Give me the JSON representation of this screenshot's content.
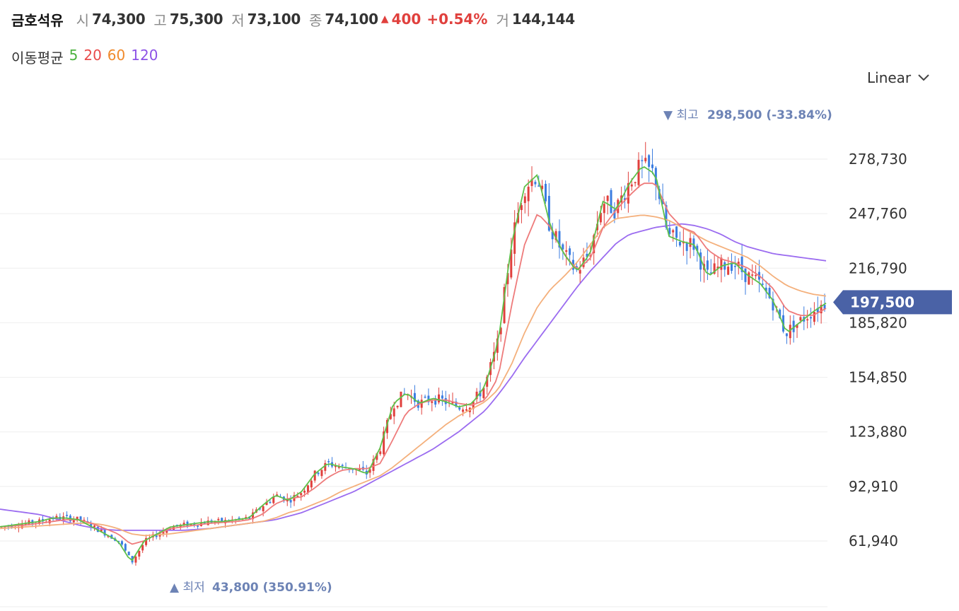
{
  "header": {
    "name": "금호석유",
    "open_label": "시",
    "open": "74,300",
    "high_label": "고",
    "high": "75,300",
    "low_label": "저",
    "low": "73,100",
    "close_label": "종",
    "close": "74,100",
    "change": "400",
    "change_pct": "+0.54%",
    "volume_label": "거",
    "volume": "144,144"
  },
  "ma_legend": {
    "title": "이동평균",
    "ma5": "5",
    "ma20": "20",
    "ma60": "60",
    "ma120": "120"
  },
  "scale_select": {
    "value": "Linear"
  },
  "colors": {
    "up": "#e0403d",
    "down": "#3b7de0",
    "ma5": "#5ec14a",
    "ma20": "#ee7b7b",
    "ma60": "#f4b07c",
    "ma120": "#9b6cf0",
    "current": "#4a62a6"
  },
  "chart_data": {
    "type": "candlestick",
    "y_ticks": [
      "278,730",
      "247,760",
      "216,790",
      "185,820",
      "154,850",
      "123,880",
      "92,910",
      "61,940"
    ],
    "y_tick_values": [
      278730,
      247760,
      216790,
      185820,
      154850,
      123880,
      92910,
      61940
    ],
    "grid": true,
    "current_price": "197,500",
    "current_value": 197500,
    "high_marker": {
      "label": "최고",
      "value_text": "298,500 (-33.84%)",
      "value": 298500
    },
    "low_marker": {
      "label": "최저",
      "value_text": "43,800 (350.91%)",
      "value": 43800
    },
    "series": [
      {
        "name": "5",
        "color": "#5ec14a",
        "values": [
          70000,
          71000,
          72000,
          73000,
          75000,
          75000,
          74000,
          70000,
          66000,
          62000,
          50000,
          62000,
          66000,
          70000,
          71000,
          72000,
          73000,
          73000,
          74000,
          75000,
          82000,
          88000,
          85000,
          90000,
          100000,
          106000,
          104000,
          103000,
          100000,
          115000,
          140000,
          146000,
          140000,
          143000,
          141000,
          138000,
          140000,
          150000,
          175000,
          230000,
          263000,
          270000,
          240000,
          225000,
          215000,
          225000,
          255000,
          250000,
          265000,
          275000,
          270000,
          235000,
          232000,
          230000,
          212000,
          218000,
          220000,
          213000,
          208000,
          198000,
          180000,
          186000,
          192000,
          197000
        ]
      },
      {
        "name": "20",
        "color": "#ee7b7b",
        "values": [
          70000,
          70500,
          71000,
          72000,
          73000,
          74000,
          74000,
          72000,
          69000,
          66000,
          60000,
          62000,
          66000,
          69000,
          70000,
          71000,
          72000,
          72500,
          73000,
          74000,
          77000,
          83000,
          86000,
          87000,
          92000,
          98000,
          102000,
          103000,
          103000,
          106000,
          120000,
          135000,
          140000,
          142000,
          142000,
          140000,
          139000,
          142000,
          155000,
          195000,
          230000,
          248000,
          240000,
          225000,
          216000,
          222000,
          240000,
          250000,
          258000,
          265000,
          265000,
          248000,
          240000,
          237000,
          227000,
          222000,
          220000,
          217000,
          212000,
          205000,
          193000,
          190000,
          190000,
          194000
        ]
      },
      {
        "name": "60",
        "color": "#f4b07c",
        "values": [
          69000,
          69500,
          70000,
          70500,
          71000,
          71500,
          72000,
          72000,
          71000,
          69000,
          66000,
          65000,
          65500,
          66000,
          67000,
          68000,
          69000,
          70000,
          71000,
          72000,
          73000,
          75000,
          78000,
          80000,
          83000,
          86000,
          90000,
          93000,
          96000,
          99000,
          104000,
          110000,
          116000,
          122000,
          128000,
          133000,
          137000,
          141000,
          148000,
          162000,
          180000,
          195000,
          205000,
          212000,
          220000,
          230000,
          240000,
          245000,
          246000,
          247000,
          246000,
          244000,
          240000,
          236000,
          232000,
          229000,
          226000,
          223000,
          218000,
          212000,
          207000,
          204000,
          202000,
          201000
        ]
      },
      {
        "name": "120",
        "color": "#9b6cf0",
        "values": [
          80000,
          79000,
          78000,
          77000,
          75000,
          73000,
          71000,
          69500,
          68500,
          68000,
          68000,
          68000,
          68000,
          68000,
          68000,
          68500,
          69000,
          70000,
          71000,
          72000,
          73000,
          74000,
          76000,
          78000,
          81000,
          84000,
          87000,
          90000,
          94000,
          98000,
          102000,
          106000,
          110000,
          114000,
          119000,
          124000,
          130000,
          136000,
          145000,
          155000,
          166000,
          176000,
          186000,
          196000,
          206000,
          215000,
          223000,
          231000,
          236000,
          238000,
          240000,
          241000,
          242000,
          241000,
          239000,
          236000,
          232000,
          229000,
          227000,
          225000,
          224000,
          223000,
          222000,
          221000
        ]
      }
    ]
  }
}
